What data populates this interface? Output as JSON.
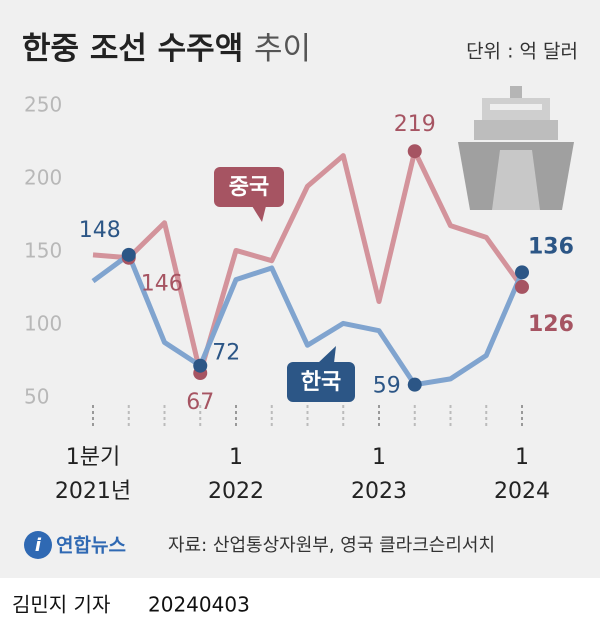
{
  "chart_data": {
    "type": "line",
    "title": "한중 조선 수주액",
    "title_suffix": "추이",
    "unit": "단위 : 억 달러",
    "categories": [
      "1분기",
      null,
      null,
      null,
      "1",
      null,
      null,
      null,
      "1",
      null,
      null,
      null,
      "1"
    ],
    "years": [
      "2021년",
      null,
      null,
      null,
      "2022",
      null,
      null,
      null,
      "2023",
      null,
      null,
      null,
      "2024"
    ],
    "series": [
      {
        "name": "중국",
        "color": "#d3939b",
        "marker_color": "#a65462",
        "values": [
          148,
          146,
          170,
          67,
          151,
          144,
          195,
          216,
          116,
          219,
          168,
          160,
          126
        ],
        "labeled_points": [
          1,
          3,
          9,
          12
        ]
      },
      {
        "name": "한국",
        "color": "#80a4cf",
        "marker_color": "#2c5686",
        "values": [
          130,
          148,
          88,
          72,
          131,
          139,
          86,
          101,
          96,
          59,
          63,
          79,
          136
        ],
        "labeled_points": [
          1,
          3,
          9,
          12
        ]
      }
    ],
    "ylim": [
      30,
      255
    ],
    "yticks": [
      50,
      100,
      150,
      200,
      250
    ],
    "grid": false,
    "logo": "연합뉴스",
    "source": "자료: 산업통상자원부, 영국 클라크슨리서치",
    "reporter": "김민지 기자",
    "date": "20240403"
  }
}
